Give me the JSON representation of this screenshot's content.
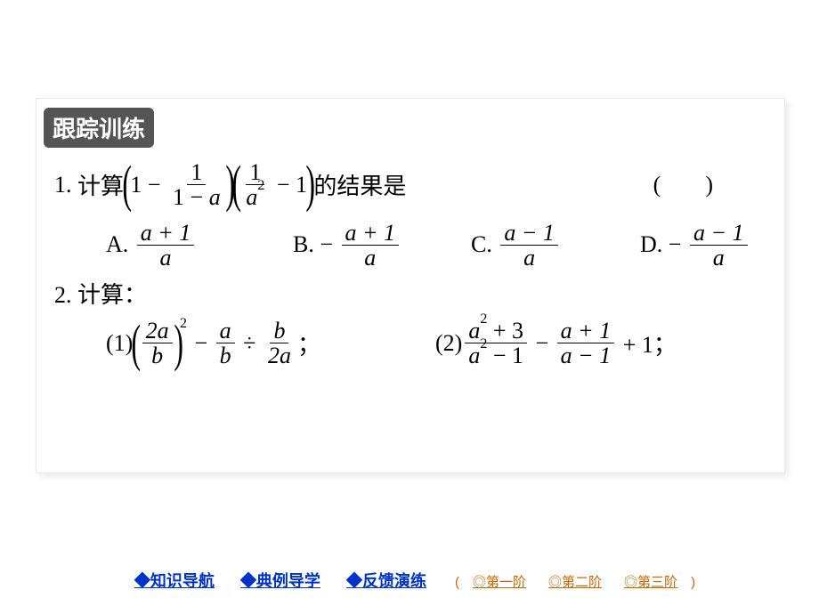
{
  "badge": "跟踪训练",
  "q1": {
    "num": "1.",
    "prefix": "计算",
    "suffix": "的结果是",
    "answer_open": "(",
    "answer_close": ")",
    "expr": {
      "one": "1",
      "minus": "−",
      "f1_num": "1",
      "f1_den_a": "1 − ",
      "f1_den_b": "a",
      "f2_num_a": "1",
      "f2_den_a": "a",
      "f2_den_sup": "2"
    }
  },
  "options": {
    "A": {
      "label": "A.",
      "num": "a + 1",
      "den": "a",
      "a_var": "a"
    },
    "B": {
      "label": "B.",
      "neg": "−",
      "num": "a + 1",
      "den": "a"
    },
    "C": {
      "label": "C.",
      "num": "a − 1",
      "den": "a"
    },
    "D": {
      "label": "D.",
      "neg": "−",
      "num": "a − 1",
      "den": "a"
    }
  },
  "q2": {
    "num": "2.",
    "label": "计算：",
    "p1": {
      "label": "(1)",
      "f1_num": "2a",
      "f1_den": "b",
      "sq": "2",
      "minus": "−",
      "f2_num": "a",
      "f2_den": "b",
      "div": "÷",
      "f3_num": "b",
      "f3_den": "2a",
      "semi": "；"
    },
    "p2": {
      "label": "(2)",
      "f1_num_a": "a",
      "f1_num_sup": "2",
      "f1_num_rest": " + 3",
      "f1_den_a": "a",
      "f1_den_sup": "2",
      "f1_den_rest": " − 1",
      "minus": "−",
      "f2_num": "a + 1",
      "f2_den": "a − 1",
      "plus": "+ 1；"
    }
  },
  "nav": {
    "main": [
      "◆知识导航",
      "◆典例导学",
      "◆反馈演练"
    ],
    "open": "(",
    "close": ")",
    "subs": [
      "◎第一阶",
      "◎第二阶",
      "◎第三阶"
    ]
  },
  "colors": {
    "badge_bg": "#555555",
    "nav_main": "#0033cc",
    "nav_sub": "#cc6600"
  }
}
